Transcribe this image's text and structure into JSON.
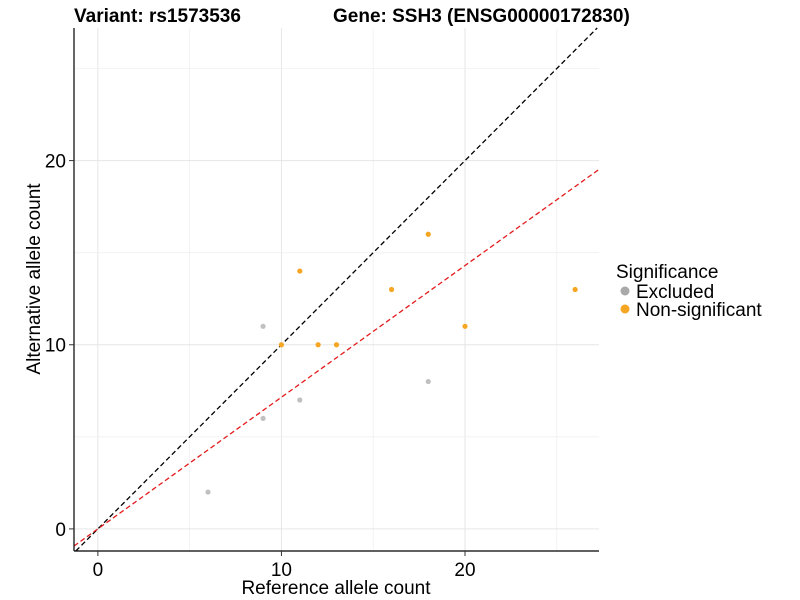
{
  "chart_data": {
    "type": "scatter",
    "title": "Variant: rs1573536",
    "subtitle": "Gene: SSH3 (ENSG00000172830)",
    "xlabel": "Reference allele count",
    "ylabel": "Alternative allele count",
    "xlim": [
      -1.3,
      27.3
    ],
    "ylim": [
      -1.2,
      27.2
    ],
    "xticks": [
      0,
      10,
      20
    ],
    "yticks": [
      0,
      10,
      20
    ],
    "grid": true,
    "legend": {
      "title": "Significance",
      "position": "right",
      "entries": [
        {
          "label": "Excluded",
          "color": "#a9a9a9"
        },
        {
          "label": "Non-significant",
          "color": "#f5a623"
        }
      ]
    },
    "series": [
      {
        "name": "Excluded",
        "color": "#c0c0c0",
        "points": [
          {
            "x": 6,
            "y": 2
          },
          {
            "x": 9,
            "y": 11
          },
          {
            "x": 9,
            "y": 6
          },
          {
            "x": 11,
            "y": 7
          },
          {
            "x": 18,
            "y": 8
          }
        ]
      },
      {
        "name": "Non-significant",
        "color": "#f5a623",
        "points": [
          {
            "x": 10,
            "y": 10
          },
          {
            "x": 11,
            "y": 14
          },
          {
            "x": 12,
            "y": 10
          },
          {
            "x": 13,
            "y": 10
          },
          {
            "x": 16,
            "y": 13
          },
          {
            "x": 18,
            "y": 16
          },
          {
            "x": 20,
            "y": 11
          },
          {
            "x": 26,
            "y": 13
          }
        ]
      }
    ],
    "reference_lines": [
      {
        "name": "identity",
        "slope": 1,
        "intercept": 0,
        "color": "#000000",
        "dash": true
      },
      {
        "name": "fit",
        "slope": 0.715,
        "intercept": 0,
        "color": "#e31a1c",
        "dash": true
      }
    ]
  }
}
